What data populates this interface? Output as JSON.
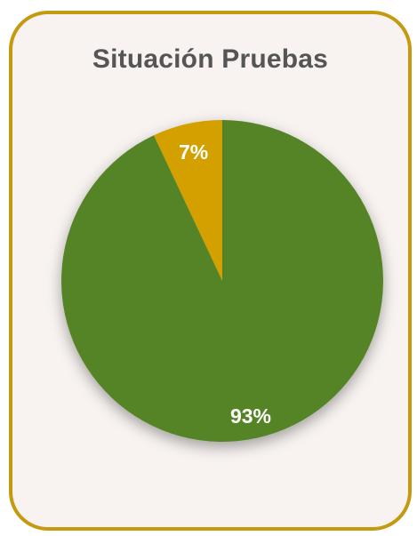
{
  "chart_data": {
    "type": "pie",
    "title": "Situación Pruebas",
    "slices": [
      {
        "label": "93%",
        "value": 93,
        "color": "#548426"
      },
      {
        "label": "7%",
        "value": 7,
        "color": "#d3a000"
      }
    ]
  },
  "colors": {
    "border": "#c49a10",
    "background": "#f8f3f1",
    "title": "#555555"
  }
}
